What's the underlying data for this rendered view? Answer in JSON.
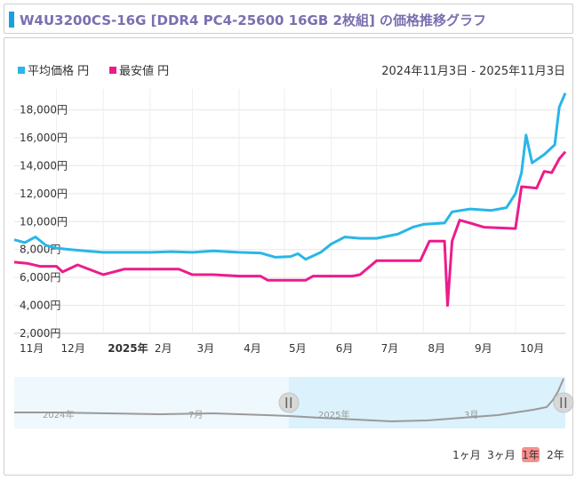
{
  "title": "W4U3200CS-16G [DDR4 PC4-25600 16GB 2枚組] の価格推移グラフ",
  "date_range": "2024年11月3日 - 2025年11月3日",
  "legend": [
    {
      "label": "平均価格 円",
      "color": "#29b6e8"
    },
    {
      "label": "最安値 円",
      "color": "#ec1c8c"
    }
  ],
  "navigator": {
    "labels": [
      "2024年",
      "7月",
      "2025年",
      "3月"
    ]
  },
  "range_buttons": [
    {
      "label": "1ヶ月",
      "active": false
    },
    {
      "label": "3ヶ月",
      "active": false
    },
    {
      "label": "1年",
      "active": true
    },
    {
      "label": "2年",
      "active": false
    }
  ],
  "colors": {
    "avg": "#29b6e8",
    "min": "#ec1c8c",
    "active_btn": "#f7908f"
  },
  "chart_data": {
    "type": "line",
    "title": "W4U3200CS-16G [DDR4 PC4-25600 16GB 2枚組] の価格推移グラフ",
    "x_range": [
      "2024-11-03",
      "2025-11-03"
    ],
    "ylim": [
      2000,
      19500
    ],
    "y_ticks": [
      "2,000円",
      "4,000円",
      "6,000円",
      "8,000円",
      "10,000円",
      "12,000円",
      "14,000円",
      "16,000円",
      "18,000円"
    ],
    "x_ticks": [
      "11月",
      "12月",
      "2025年",
      "2月",
      "3月",
      "4月",
      "5月",
      "6月",
      "7月",
      "8月",
      "9月",
      "10月"
    ],
    "grid": true,
    "legend_position": "top-left",
    "series": [
      {
        "name": "平均価格 円",
        "color": "#29b6e8",
        "points": [
          [
            "2024-11-03",
            8700
          ],
          [
            "2024-11-10",
            8500
          ],
          [
            "2024-11-17",
            8900
          ],
          [
            "2024-11-24",
            8300
          ],
          [
            "2024-12-01",
            8100
          ],
          [
            "2024-12-10",
            8000
          ],
          [
            "2024-12-20",
            7900
          ],
          [
            "2025-01-01",
            7800
          ],
          [
            "2025-01-15",
            7800
          ],
          [
            "2025-02-01",
            7800
          ],
          [
            "2025-02-15",
            7850
          ],
          [
            "2025-03-01",
            7800
          ],
          [
            "2025-03-15",
            7900
          ],
          [
            "2025-04-01",
            7800
          ],
          [
            "2025-04-15",
            7750
          ],
          [
            "2025-04-25",
            7450
          ],
          [
            "2025-05-05",
            7500
          ],
          [
            "2025-05-10",
            7700
          ],
          [
            "2025-05-15",
            7300
          ],
          [
            "2025-05-25",
            7800
          ],
          [
            "2025-06-01",
            8400
          ],
          [
            "2025-06-10",
            8900
          ],
          [
            "2025-06-20",
            8800
          ],
          [
            "2025-07-01",
            8800
          ],
          [
            "2025-07-15",
            9100
          ],
          [
            "2025-07-25",
            9600
          ],
          [
            "2025-08-01",
            9800
          ],
          [
            "2025-08-15",
            9900
          ],
          [
            "2025-08-20",
            10700
          ],
          [
            "2025-09-01",
            10900
          ],
          [
            "2025-09-15",
            10800
          ],
          [
            "2025-09-25",
            11000
          ],
          [
            "2025-10-01",
            12000
          ],
          [
            "2025-10-05",
            13500
          ],
          [
            "2025-10-08",
            16200
          ],
          [
            "2025-10-12",
            14200
          ],
          [
            "2025-10-20",
            14800
          ],
          [
            "2025-10-27",
            15500
          ],
          [
            "2025-10-30",
            18200
          ],
          [
            "2025-11-03",
            19200
          ]
        ]
      },
      {
        "name": "最安値 円",
        "color": "#ec1c8c",
        "points": [
          [
            "2024-11-03",
            7100
          ],
          [
            "2024-11-12",
            7000
          ],
          [
            "2024-11-20",
            6800
          ],
          [
            "2024-12-01",
            6800
          ],
          [
            "2024-12-05",
            6400
          ],
          [
            "2024-12-15",
            6900
          ],
          [
            "2025-01-01",
            6200
          ],
          [
            "2025-01-15",
            6600
          ],
          [
            "2025-02-01",
            6600
          ],
          [
            "2025-02-20",
            6600
          ],
          [
            "2025-03-01",
            6200
          ],
          [
            "2025-03-15",
            6200
          ],
          [
            "2025-04-01",
            6100
          ],
          [
            "2025-04-15",
            6100
          ],
          [
            "2025-04-20",
            5800
          ],
          [
            "2025-05-15",
            5800
          ],
          [
            "2025-05-20",
            6100
          ],
          [
            "2025-06-15",
            6100
          ],
          [
            "2025-06-20",
            6200
          ],
          [
            "2025-07-01",
            7200
          ],
          [
            "2025-07-30",
            7200
          ],
          [
            "2025-08-05",
            8600
          ],
          [
            "2025-08-15",
            8600
          ],
          [
            "2025-08-17",
            4000
          ],
          [
            "2025-08-20",
            8600
          ],
          [
            "2025-08-25",
            10100
          ],
          [
            "2025-09-01",
            9900
          ],
          [
            "2025-09-10",
            9600
          ],
          [
            "2025-10-01",
            9500
          ],
          [
            "2025-10-05",
            12500
          ],
          [
            "2025-10-15",
            12400
          ],
          [
            "2025-10-20",
            13600
          ],
          [
            "2025-10-25",
            13500
          ],
          [
            "2025-10-30",
            14500
          ],
          [
            "2025-11-03",
            15000
          ]
        ]
      }
    ]
  }
}
